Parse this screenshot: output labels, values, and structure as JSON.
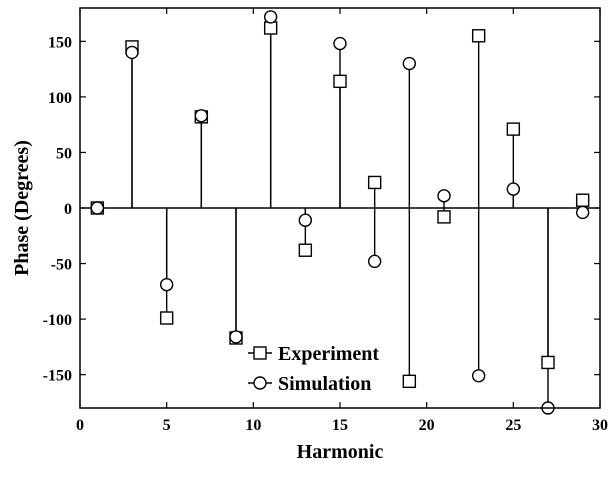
{
  "chart_data": {
    "type": "stem",
    "xlabel": "Harmonic",
    "ylabel": "Phase (Degrees)",
    "xlim": [
      0,
      30
    ],
    "ylim": [
      -180,
      180
    ],
    "xticks": [
      0,
      5,
      10,
      15,
      20,
      25,
      30
    ],
    "yticks": [
      -150,
      -100,
      -50,
      0,
      50,
      100,
      150
    ],
    "xtick_labels": [
      "0",
      "5",
      "10",
      "15",
      "20",
      "25",
      "30"
    ],
    "ytick_labels": [
      "-150",
      "-100",
      "-50",
      "0",
      "50",
      "100",
      "150"
    ],
    "grid": false,
    "legend_position": "bottom-center",
    "x": [
      1,
      3,
      5,
      7,
      9,
      11,
      13,
      15,
      17,
      19,
      21,
      23,
      25,
      27,
      29
    ],
    "series": [
      {
        "name": "Experiment",
        "marker": "square",
        "values": [
          0,
          145,
          -99,
          82,
          -117,
          162,
          -38,
          114,
          23,
          -156,
          -8,
          155,
          71,
          -139,
          7
        ]
      },
      {
        "name": "Simulation",
        "marker": "circle",
        "values": [
          0,
          140,
          -69,
          83,
          -116,
          172,
          -11,
          148,
          -48,
          130,
          11,
          -151,
          17,
          -180,
          -4
        ]
      }
    ]
  }
}
